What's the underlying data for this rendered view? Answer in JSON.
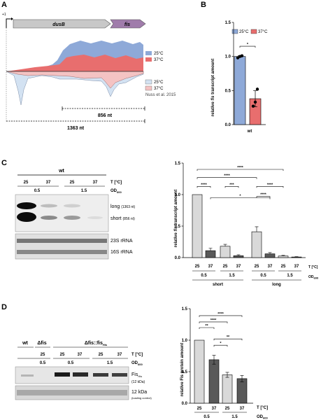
{
  "panels": {
    "A": {
      "letter": "A",
      "plus_one": "+1",
      "gene1": "dusB",
      "gene2": "fis",
      "legend_top": [
        "25°C",
        "37°C"
      ],
      "legend_bottom": [
        "25°C",
        "37°C"
      ],
      "citation": "Nuss et al. 2015",
      "len_short": "856 nt",
      "len_long": "1363 nt",
      "colors": {
        "c25_top": "#8ea9d8",
        "c37_top": "#e86e6e",
        "c25_bottom": "#d3e2f2",
        "c37_bottom": "#f4c3c3",
        "gene_fill": "#c8c8c8",
        "fis_fill": "#a07cab"
      }
    },
    "B": {
      "letter": "B",
      "legend": [
        "25°C",
        "37°C"
      ],
      "ylabel_pre": "relative ",
      "ylabel_it": "fis",
      "ylabel_post": " transcript amount",
      "xlabel": "wt",
      "sig": "*",
      "ticks": [
        "0.0",
        "0.5",
        "1.0",
        "1.5"
      ]
    },
    "C": {
      "letter": "C",
      "blot_group": "wt",
      "t_label": "T [°C]",
      "od_label": "OD",
      "od_sub": "600",
      "temps": [
        "25",
        "37",
        "25",
        "37"
      ],
      "ods": [
        "0.5",
        "1.5"
      ],
      "band_long": "long",
      "band_long_nt": "(1363 nt)",
      "band_short": "short",
      "band_short_nt": "(856 nt)",
      "rrna23": "23S rRNA",
      "rrna16": "16S rRNA",
      "ylabel_pre": "relative ",
      "ylabel_it": "fis",
      "ylabel_post": " transcript amount",
      "ticks": [
        "0.0",
        "0.5",
        "1.0",
        "1.5"
      ],
      "x_temps": [
        "25",
        "37",
        "25",
        "37",
        "25",
        "37",
        "25",
        "37"
      ],
      "x_ods": [
        "0.5",
        "1.5",
        "0.5",
        "1.5"
      ],
      "x_groups": [
        "short",
        "long"
      ],
      "sig_labels": [
        "****",
        "****",
        "****",
        "***",
        "*",
        "****",
        "****"
      ]
    },
    "D": {
      "letter": "D",
      "lane_wt": "wt",
      "lane_dfis": "Δfis",
      "lane_comp": "Δfis::fis",
      "lane_comp_sub": "His",
      "t_label": "T [°C]",
      "od_label": "OD",
      "od_sub": "600",
      "temps": [
        "25",
        "25",
        "37",
        "25",
        "37"
      ],
      "ods": [
        "0.5",
        "0.5",
        "1.5"
      ],
      "band_label": "Fis",
      "band_sub": "His",
      "band_kda": "(12 kDa)",
      "loading_kda": "12 kDa",
      "loading_note": "(loading control)",
      "ylabel": "relative Fis protein amount",
      "ticks": [
        "0.0",
        "0.5",
        "1.0",
        "1.5"
      ],
      "x_temps": [
        "25",
        "37",
        "25",
        "37"
      ],
      "x_ods": [
        "0.5",
        "1.5"
      ],
      "sig_labels": [
        "**",
        "****",
        "****",
        "*",
        "**"
      ]
    }
  },
  "chart_data": [
    {
      "type": "bar",
      "panel": "B",
      "categories": [
        "wt"
      ],
      "series": [
        {
          "name": "25°C",
          "values": [
            1.0
          ],
          "error": [
            0.01
          ],
          "points": [
            0.98,
            1.0,
            1.01
          ],
          "color": "#8ea9d8"
        },
        {
          "name": "37°C",
          "values": [
            0.38
          ],
          "error": [
            0.12
          ],
          "points": [
            0.27,
            0.33,
            0.52
          ],
          "color": "#e86e6e"
        }
      ],
      "xlabel": "wt",
      "ylabel": "relative fis transcript amount",
      "ylim": [
        0,
        1.5
      ],
      "significance": [
        "*"
      ]
    },
    {
      "type": "bar",
      "panel": "C",
      "categories": [
        "25",
        "37",
        "25",
        "37",
        "25",
        "37",
        "25",
        "37"
      ],
      "values": [
        1.0,
        0.11,
        0.18,
        0.03,
        0.41,
        0.06,
        0.025,
        0.01
      ],
      "errors": [
        0.0,
        0.04,
        0.03,
        0.015,
        0.08,
        0.02,
        0.01,
        0.005
      ],
      "colors": [
        "#d9d9d9",
        "#595959",
        "#d9d9d9",
        "#595959",
        "#d9d9d9",
        "#595959",
        "#d9d9d9",
        "#595959"
      ],
      "ylabel": "relative fis transcript amount",
      "ylim": [
        0,
        1.5
      ],
      "significance": [
        "****",
        "****",
        "****",
        "***",
        "*",
        "****",
        "****"
      ]
    },
    {
      "type": "bar",
      "panel": "D",
      "categories": [
        "25",
        "37",
        "25",
        "37"
      ],
      "values": [
        1.0,
        0.69,
        0.45,
        0.39
      ],
      "errors": [
        0.0,
        0.07,
        0.04,
        0.05
      ],
      "colors": [
        "#d9d9d9",
        "#595959",
        "#d9d9d9",
        "#595959"
      ],
      "ylabel": "relative Fis protein amount",
      "ylim": [
        0,
        1.5
      ],
      "significance": [
        "**",
        "****",
        "****",
        "*",
        "**"
      ]
    }
  ]
}
